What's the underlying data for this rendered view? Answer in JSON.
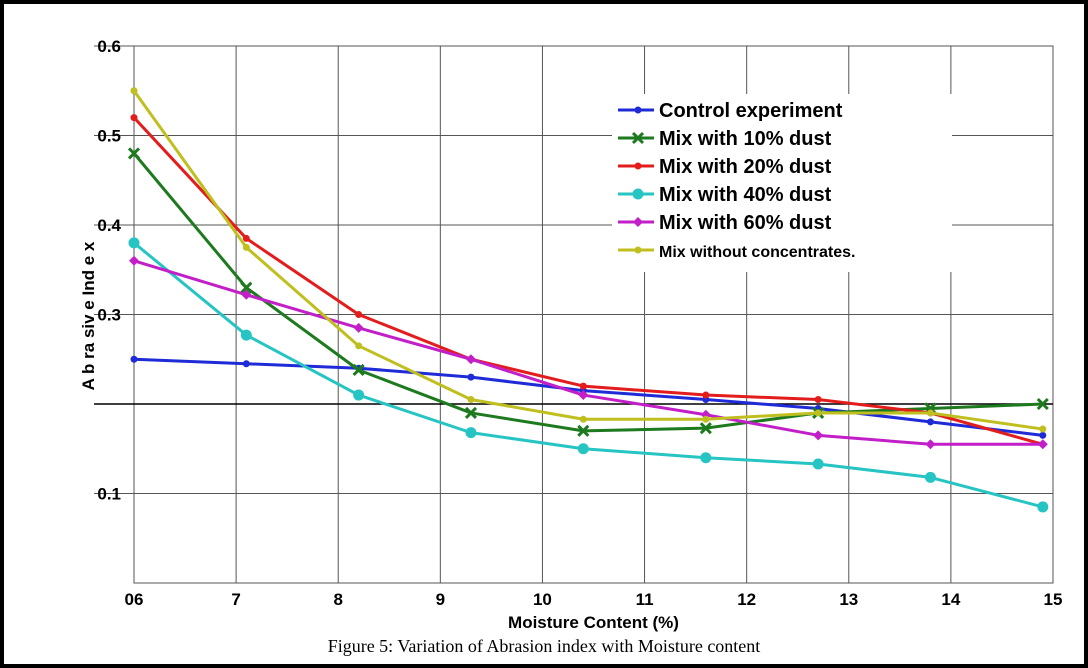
{
  "caption": "Figure 5: Variation of Abrasion index with Moisture content",
  "chart_data": {
    "type": "line",
    "xlabel": "Moisture Content (%)",
    "ylabel": "A b ra siv e Ind e x",
    "xlim": [
      6,
      15
    ],
    "ylim": [
      0.0,
      0.6
    ],
    "x_tick_labels": [
      "06",
      "7",
      "8",
      "9",
      "10",
      "11",
      "12",
      "13",
      "14",
      "15"
    ],
    "y_tick_labels": [
      "0.6",
      "0.5",
      "0.4",
      "0.3",
      "0.1"
    ],
    "grid": true,
    "legend_position": "top-right",
    "x": [
      6.0,
      7.1,
      8.2,
      9.3,
      10.4,
      11.6,
      12.7,
      13.8,
      14.9
    ],
    "series": [
      {
        "name": "Control experiment",
        "color": "#1f2bd6",
        "marker": "dot",
        "values": [
          0.25,
          0.245,
          0.24,
          0.23,
          0.215,
          0.205,
          0.195,
          0.18,
          0.165
        ]
      },
      {
        "name": "Mix with 10% dust",
        "color": "#1e7a1e",
        "marker": "x",
        "values": [
          0.48,
          0.33,
          0.238,
          0.19,
          0.17,
          0.173,
          0.19,
          0.195,
          0.2
        ]
      },
      {
        "name": "Mix with 20% dust",
        "color": "#e31c1c",
        "marker": "dot",
        "values": [
          0.52,
          0.385,
          0.3,
          0.25,
          0.22,
          0.21,
          0.205,
          0.19,
          0.155
        ]
      },
      {
        "name": "Mix with 40% dust",
        "color": "#27c4c4",
        "marker": "circle",
        "values": [
          0.38,
          0.277,
          0.21,
          0.168,
          0.15,
          0.14,
          0.133,
          0.118,
          0.085
        ]
      },
      {
        "name": "Mix with 60% dust",
        "color": "#c21fc9",
        "marker": "diamond",
        "values": [
          0.36,
          0.322,
          0.285,
          0.25,
          0.21,
          0.188,
          0.165,
          0.155,
          0.155
        ]
      },
      {
        "name": "Mix without concentrates.",
        "color": "#bfbf1f",
        "marker": "dot",
        "values": [
          0.55,
          0.375,
          0.265,
          0.205,
          0.183,
          0.183,
          0.19,
          0.19,
          0.172
        ]
      }
    ]
  }
}
